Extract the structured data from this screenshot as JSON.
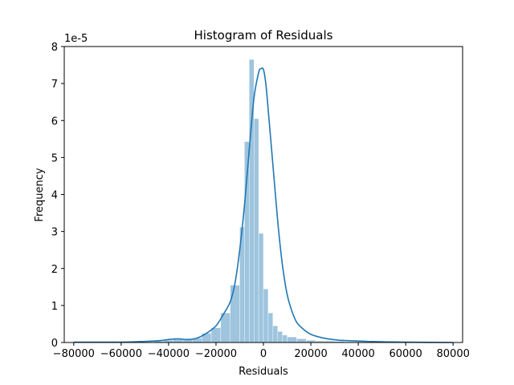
{
  "chart_data": {
    "type": "bar",
    "title": "Histogram of Residuals",
    "xlabel": "Residuals",
    "ylabel": "Frequency",
    "y_offset_label": "1e-5",
    "xlim": [
      -84000,
      84000
    ],
    "ylim": [
      0,
      8
    ],
    "y_scale": 1e-05,
    "xticks": [
      -80000,
      -60000,
      -40000,
      -20000,
      0,
      20000,
      40000,
      60000,
      80000
    ],
    "xtick_labels": [
      "−80000",
      "−60000",
      "−40000",
      "−20000",
      "0",
      "20000",
      "40000",
      "60000",
      "80000"
    ],
    "yticks": [
      0,
      1,
      2,
      3,
      4,
      5,
      6,
      7,
      8
    ],
    "ytick_labels": [
      "0",
      "1",
      "2",
      "3",
      "4",
      "5",
      "6",
      "7",
      "8"
    ],
    "grid": false,
    "legend": "none",
    "bar_color": "#9ec4de",
    "kde_color": "#1f77b4",
    "bins": {
      "edges": [
        -46000,
        -42000,
        -38000,
        -34000,
        -30000,
        -26000,
        -22000,
        -18000,
        -14000,
        -10000,
        -8000,
        -6000,
        -4000,
        -2000,
        0,
        2000,
        4000,
        6000,
        8000,
        10000,
        14000,
        18000,
        22000,
        26000,
        30000,
        34000,
        38000,
        42000,
        46000,
        50000
      ],
      "heights": [
        0.04,
        0.06,
        0.08,
        0.1,
        0.12,
        0.25,
        0.4,
        0.8,
        1.55,
        3.12,
        5.43,
        7.65,
        6.05,
        2.95,
        1.45,
        0.8,
        0.45,
        0.3,
        0.2,
        0.15,
        0.1,
        0.06,
        0.04,
        0.04,
        0.03,
        0.02,
        0.02,
        0.02,
        0.01
      ]
    },
    "kde": {
      "x": [
        -80000,
        -60000,
        -50000,
        -44000,
        -40000,
        -36000,
        -32000,
        -28000,
        -24000,
        -20000,
        -17000,
        -14000,
        -12000,
        -10000,
        -8000,
        -6000,
        -4000,
        -2000,
        -1000,
        0,
        1000,
        2000,
        4000,
        6000,
        8000,
        10000,
        12000,
        14000,
        17000,
        20000,
        24000,
        28000,
        32000,
        36000,
        40000,
        44000,
        50000,
        60000,
        80000
      ],
      "y": [
        0.01,
        0.01,
        0.03,
        0.05,
        0.08,
        0.1,
        0.08,
        0.12,
        0.25,
        0.45,
        0.75,
        1.1,
        1.6,
        2.5,
        3.7,
        5.2,
        6.6,
        7.3,
        7.4,
        7.38,
        7.0,
        6.3,
        4.8,
        3.3,
        2.1,
        1.3,
        0.85,
        0.55,
        0.35,
        0.22,
        0.14,
        0.09,
        0.06,
        0.05,
        0.04,
        0.03,
        0.02,
        0.01,
        0.0
      ]
    }
  }
}
